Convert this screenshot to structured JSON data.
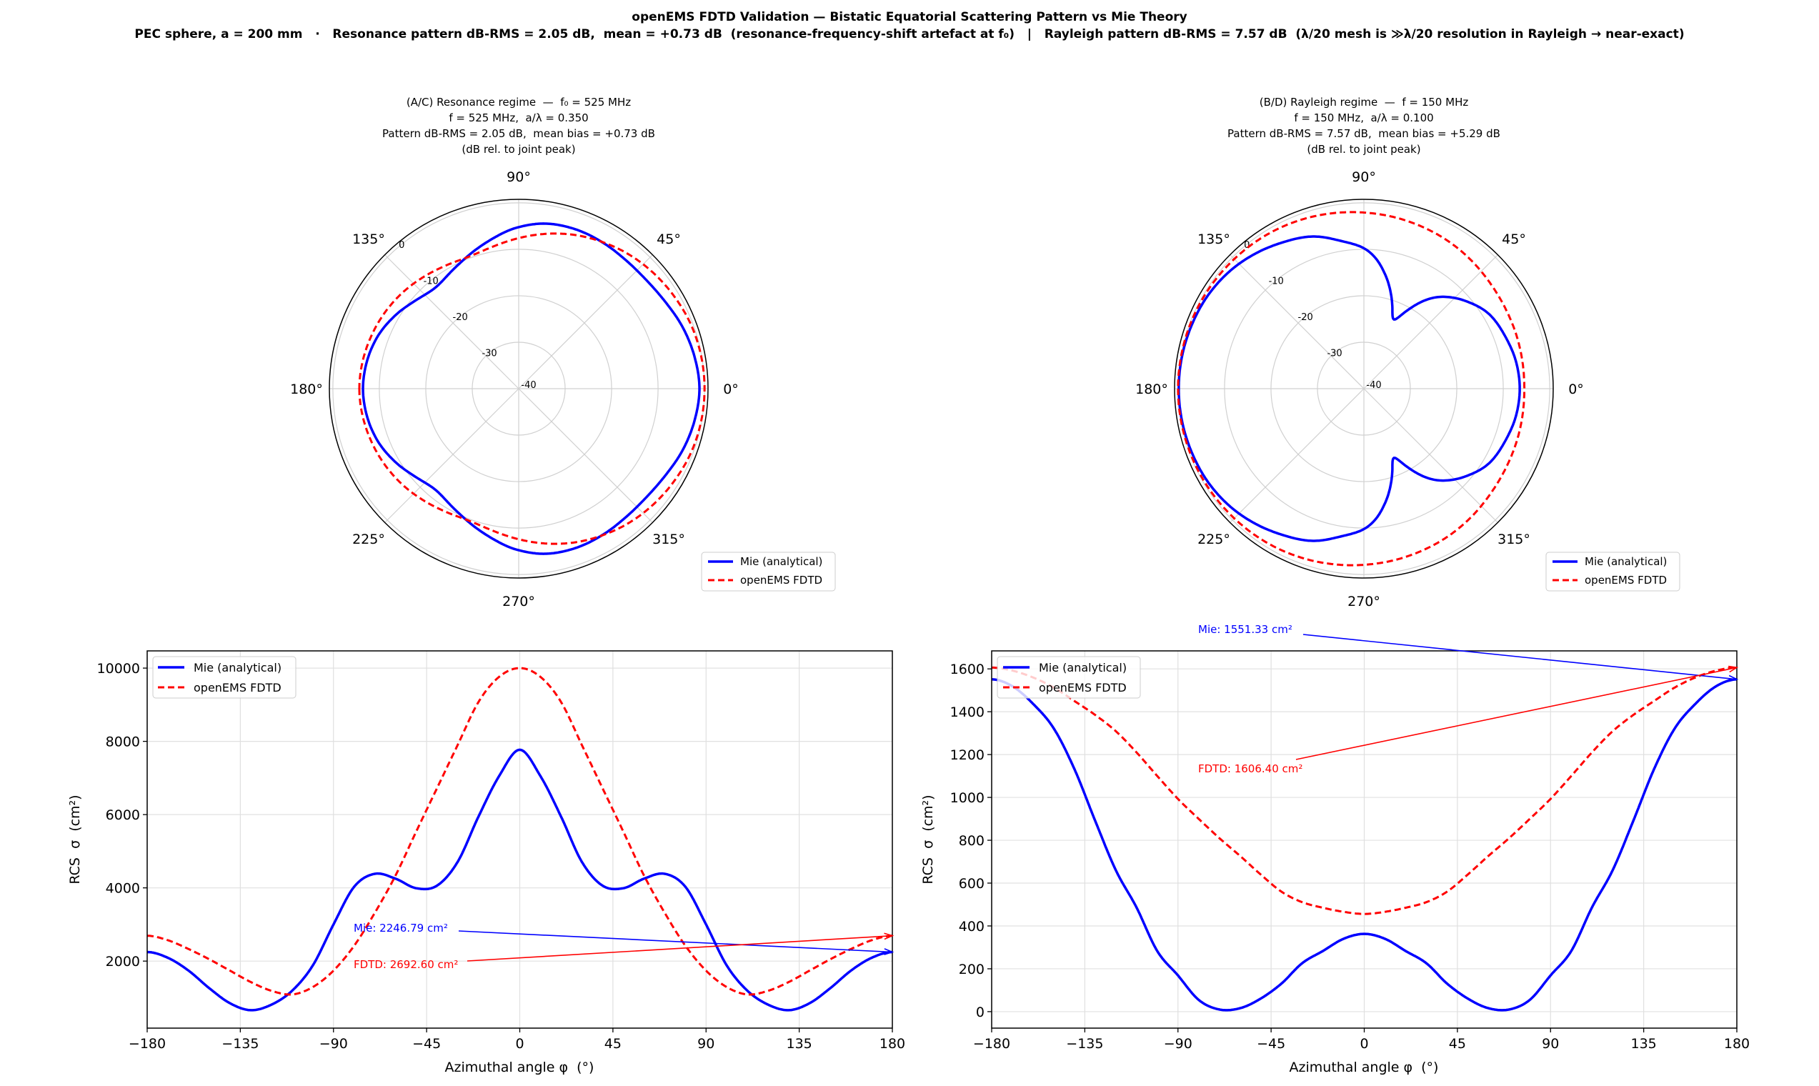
{
  "figure": {
    "title": "openEMS FDTD Validation — Bistatic Equatorial Scattering Pattern vs Mie Theory",
    "subtitle": "PEC sphere, a = 200 mm   ·   Resonance pattern dB-RMS = 2.05 dB,  mean = +0.73 dB  (resonance-frequency-shift artefact at f₀)   |   Rayleigh pattern dB-RMS = 7.57 dB  (λ/20 mesh is ≫λ/20 resolution in Rayleigh → near-exact)"
  },
  "colors": {
    "mie": "#0000ff",
    "fdtd": "#ff0000",
    "grid": "#e0e0e0"
  },
  "chart_data": [
    {
      "id": "C",
      "type": "line",
      "xlabel": "Azimuthal angle φ  (°)",
      "ylabel": "RCS  σ  (cm²)",
      "xlim": [
        -180,
        180
      ],
      "ylim": [
        170,
        10470
      ],
      "xticks": [
        -180,
        -135,
        -90,
        -45,
        0,
        45,
        90,
        135,
        180
      ],
      "xtick_labels": [
        "−180",
        "−135",
        "−90",
        "−45",
        "0",
        "45",
        "90",
        "135",
        "180"
      ],
      "yticks": [
        2000,
        4000,
        6000,
        8000,
        10000
      ],
      "ytick_labels": [
        "2000",
        "4000",
        "6000",
        "8000",
        "10000"
      ],
      "grid": true,
      "legend": "upper-left",
      "x": [
        -180,
        -170,
        -160,
        -150,
        -140,
        -130,
        -120,
        -110,
        -100,
        -90,
        -80,
        -70,
        -60,
        -50,
        -40,
        -30,
        -20,
        -10,
        0,
        10,
        20,
        30,
        40,
        50,
        60,
        70,
        80,
        90,
        100,
        110,
        120,
        130,
        140,
        150,
        160,
        170,
        180
      ],
      "series": [
        {
          "name": "Mie (analytical)",
          "values": [
            2247,
            2090,
            1740,
            1260,
            850,
            660,
            810,
            1190,
            1880,
            3000,
            4030,
            4384,
            4250,
            3990,
            4060,
            4710,
            5940,
            7050,
            7770,
            7050,
            5940,
            4710,
            4060,
            3990,
            4250,
            4384,
            4030,
            3000,
            1880,
            1190,
            810,
            660,
            850,
            1260,
            1740,
            2090,
            2247
          ]
        },
        {
          "name": "openEMS FDTD",
          "values": [
            2692,
            2570,
            2330,
            2050,
            1740,
            1430,
            1190,
            1090,
            1290,
            1740,
            2420,
            3320,
            4340,
            5540,
            6720,
            7900,
            9070,
            9760,
            10000,
            9760,
            9070,
            7900,
            6720,
            5540,
            4340,
            3320,
            2420,
            1740,
            1290,
            1090,
            1190,
            1430,
            1740,
            2050,
            2330,
            2570,
            2692
          ]
        }
      ],
      "annotations": [
        {
          "text": "Mie: 2246.79 cm²",
          "series": 0,
          "x": 180,
          "y": 2246.79
        },
        {
          "text": "FDTD: 2692.60 cm²",
          "series": 1,
          "x": 180,
          "y": 2692.6
        }
      ]
    },
    {
      "id": "D",
      "type": "line",
      "xlabel": "Azimuthal angle φ  (°)",
      "ylabel": "RCS  σ  (cm²)",
      "xlim": [
        -180,
        180
      ],
      "ylim": [
        -77,
        1684
      ],
      "xticks": [
        -180,
        -135,
        -90,
        -45,
        0,
        45,
        90,
        135,
        180
      ],
      "xtick_labels": [
        "−180",
        "−135",
        "−90",
        "−45",
        "0",
        "45",
        "90",
        "135",
        "180"
      ],
      "yticks": [
        0,
        200,
        400,
        600,
        800,
        1000,
        1200,
        1400,
        1600
      ],
      "ytick_labels": [
        "0",
        "200",
        "400",
        "600",
        "800",
        "1000",
        "1200",
        "1400",
        "1600"
      ],
      "grid": true,
      "legend": "upper-left",
      "x": [
        -180,
        -170,
        -160,
        -150,
        -140,
        -130,
        -120,
        -110,
        -100,
        -90,
        -80,
        -70,
        -60,
        -50,
        -40,
        -30,
        -20,
        -10,
        0,
        10,
        20,
        30,
        40,
        50,
        60,
        70,
        80,
        90,
        100,
        110,
        120,
        130,
        140,
        150,
        160,
        170,
        180
      ],
      "series": [
        {
          "name": "Mie (analytical)",
          "values": [
            1551,
            1519,
            1437,
            1322,
            1132,
            891,
            660,
            486,
            283,
            169,
            55,
            10,
            16,
            61,
            131,
            226,
            283,
            340,
            363,
            340,
            283,
            226,
            131,
            61,
            16,
            10,
            55,
            169,
            283,
            486,
            660,
            891,
            1132,
            1322,
            1437,
            1519,
            1551
          ]
        },
        {
          "name": "openEMS FDTD",
          "values": [
            1606,
            1592,
            1560,
            1513,
            1450,
            1385,
            1309,
            1210,
            1100,
            993,
            900,
            810,
            727,
            640,
            560,
            511,
            485,
            466,
            456,
            466,
            485,
            511,
            560,
            640,
            727,
            810,
            900,
            993,
            1100,
            1210,
            1309,
            1385,
            1450,
            1513,
            1560,
            1592,
            1606
          ]
        }
      ],
      "annotations": [
        {
          "text": "Mie: 1551.33 cm²",
          "series": 0,
          "x": 180,
          "y": 1551.33
        },
        {
          "text": "FDTD: 1606.40 cm²",
          "series": 1,
          "x": 180,
          "y": 1606.4
        }
      ]
    },
    {
      "id": "A",
      "type": "line-polar",
      "data_from": "C",
      "title_lines": [
        "(A/C) Resonance regime  —  f₀ = 525 MHz",
        "f = 525 MHz,  a/λ = 0.350",
        "Pattern dB-RMS = 2.05 dB,  mean bias = +0.73 dB",
        "(dB rel. to joint peak)"
      ],
      "rlim": [
        -40,
        0.75
      ],
      "r_ticks": [
        0,
        -10,
        -20,
        -30,
        -40
      ],
      "r_tick_labels": [
        "0",
        "-10",
        "-20",
        "-30",
        "-40"
      ],
      "theta_labels": [
        "0°",
        "45°",
        "90°",
        "135°",
        "180°",
        "225°",
        "270°",
        "315°"
      ],
      "legend": "lower-right",
      "series_names": [
        "Mie (analytical)",
        "openEMS FDTD"
      ]
    },
    {
      "id": "B",
      "type": "line-polar",
      "data_from": "D",
      "title_lines": [
        "(B/D) Rayleigh regime  —  f = 150 MHz",
        "f = 150 MHz,  a/λ = 0.100",
        "Pattern dB-RMS = 7.57 dB,  mean bias = +5.29 dB",
        "(dB rel. to joint peak)"
      ],
      "rlim": [
        -40,
        0.75
      ],
      "r_ticks": [
        0,
        -10,
        -20,
        -30,
        -40
      ],
      "r_tick_labels": [
        "0",
        "-10",
        "-20",
        "-30",
        "-40"
      ],
      "theta_labels": [
        "0°",
        "45°",
        "90°",
        "135°",
        "180°",
        "225°",
        "270°",
        "315°"
      ],
      "legend": "lower-right",
      "series_names": [
        "Mie (analytical)",
        "openEMS FDTD"
      ]
    }
  ]
}
